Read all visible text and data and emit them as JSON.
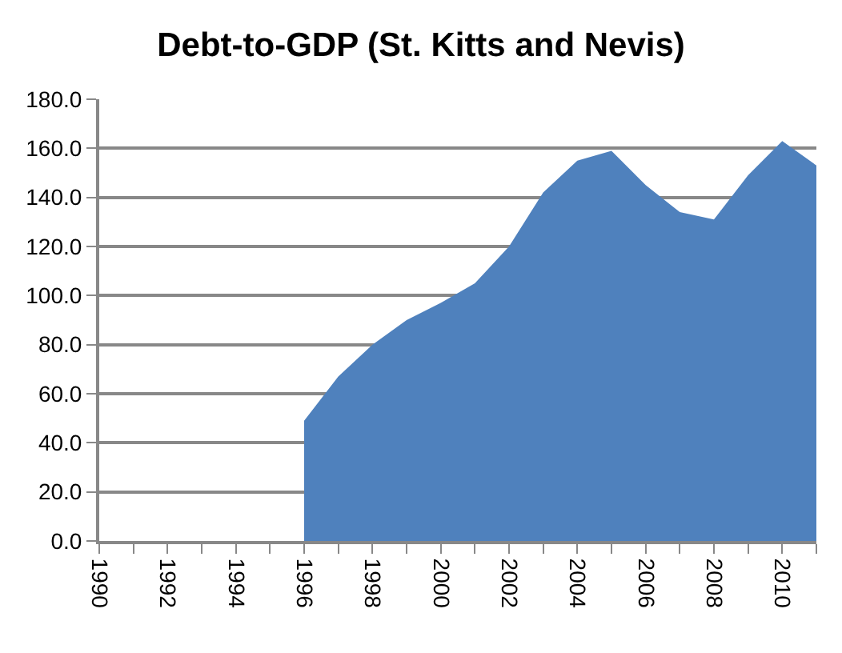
{
  "chart_data": {
    "type": "area",
    "title": "Debt-to-GDP (St. Kitts and Nevis)",
    "x": [
      1996,
      1997,
      1998,
      1999,
      2000,
      2001,
      2002,
      2003,
      2004,
      2005,
      2006,
      2007,
      2008,
      2009,
      2010,
      2011
    ],
    "series": [
      {
        "color": "#4f81bd",
        "values": [
          49,
          67,
          80,
          90,
          97,
          105,
          120,
          142,
          155,
          159,
          145,
          134,
          131,
          149,
          163,
          153
        ]
      }
    ],
    "xlim": [
      1990,
      2011
    ],
    "xticks": [
      1990,
      {
        "value": 1991,
        "label": null
      },
      1992,
      {
        "value": 1993,
        "label": null
      },
      1994,
      {
        "value": 1995,
        "label": null
      },
      1996,
      {
        "value": 1997,
        "label": null
      },
      1998,
      {
        "value": 1999,
        "label": null
      },
      2000,
      {
        "value": 2001,
        "label": null
      },
      2002,
      {
        "value": 2003,
        "label": null
      },
      2004,
      {
        "value": 2005,
        "label": null
      },
      2006,
      {
        "value": 2007,
        "label": null
      },
      2008,
      {
        "value": 2009,
        "label": null
      },
      2010,
      {
        "value": 2011,
        "label": null
      }
    ],
    "ylim": [
      0,
      180
    ],
    "yticks": [
      {
        "value": 0,
        "label": "0.0"
      },
      {
        "value": 20,
        "label": "20.0"
      },
      {
        "value": 40,
        "label": "40.0"
      },
      {
        "value": 60,
        "label": "60.0"
      },
      {
        "value": 80,
        "label": "80.0"
      },
      {
        "value": 100,
        "label": "100.0"
      },
      {
        "value": 120,
        "label": "120.0"
      },
      {
        "value": 140,
        "label": "140.0"
      },
      {
        "value": 160,
        "label": "160.0"
      },
      {
        "value": 180,
        "label": "180.0"
      }
    ],
    "grid": "y"
  }
}
